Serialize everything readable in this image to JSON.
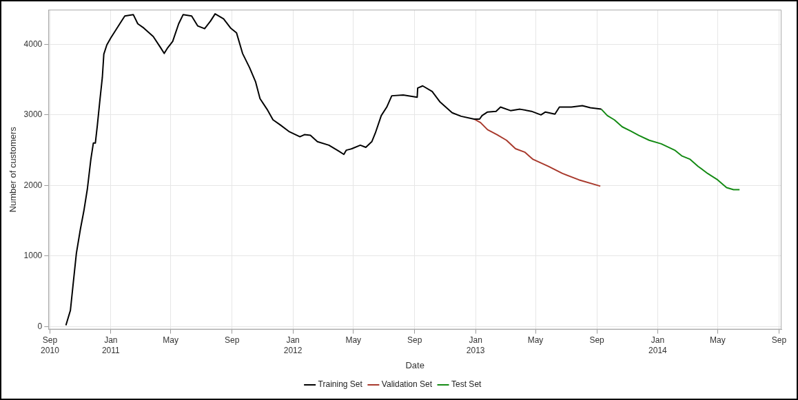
{
  "chart_data": {
    "type": "line",
    "xlabel": "Date",
    "ylabel": "Number of customers",
    "xlim": [
      "2010-08-29",
      "2014-09-06"
    ],
    "ylim": [
      -40,
      4490
    ],
    "xticks": [
      {
        "value": "2010-09-01",
        "label": "Sep 2010"
      },
      {
        "value": "2011-01-01",
        "label": "Jan 2011"
      },
      {
        "value": "2011-05-01",
        "label": "May"
      },
      {
        "value": "2011-09-01",
        "label": "Sep"
      },
      {
        "value": "2012-01-01",
        "label": "Jan 2012"
      },
      {
        "value": "2012-05-01",
        "label": "May"
      },
      {
        "value": "2012-09-01",
        "label": "Sep"
      },
      {
        "value": "2013-01-01",
        "label": "Jan 2013"
      },
      {
        "value": "2013-05-01",
        "label": "May"
      },
      {
        "value": "2013-09-01",
        "label": "Sep"
      },
      {
        "value": "2014-01-01",
        "label": "Jan 2014"
      },
      {
        "value": "2014-05-01",
        "label": "May"
      },
      {
        "value": "2014-09-01",
        "label": "Sep"
      }
    ],
    "yticks": [
      0,
      1000,
      2000,
      3000,
      4000
    ],
    "grid": true,
    "legend": "bottom",
    "marker": "none",
    "line_style": "solid",
    "series": [
      {
        "name": "Training Set",
        "color": "#000000",
        "x": [
          "2010-10-03",
          "2010-10-12",
          "2010-10-17",
          "2010-10-24",
          "2010-11-01",
          "2010-11-08",
          "2010-11-15",
          "2010-11-22",
          "2010-11-27",
          "2010-12-01",
          "2010-12-05",
          "2010-12-10",
          "2010-12-15",
          "2010-12-18",
          "2010-12-24",
          "2011-01-01",
          "2011-01-10",
          "2011-01-19",
          "2011-01-29",
          "2011-02-15",
          "2011-02-24",
          "2011-03-08",
          "2011-03-27",
          "2011-04-10",
          "2011-04-18",
          "2011-04-24",
          "2011-05-05",
          "2011-05-17",
          "2011-05-26",
          "2011-06-12",
          "2011-06-24",
          "2011-07-08",
          "2011-07-20",
          "2011-07-29",
          "2011-08-15",
          "2011-08-29",
          "2011-09-10",
          "2011-09-22",
          "2011-10-06",
          "2011-10-18",
          "2011-10-27",
          "2011-11-10",
          "2011-11-22",
          "2011-12-06",
          "2011-12-25",
          "2012-01-15",
          "2012-01-24",
          "2012-02-05",
          "2012-02-19",
          "2012-03-13",
          "2012-04-01",
          "2012-04-12",
          "2012-04-17",
          "2012-04-28",
          "2012-05-15",
          "2012-05-26",
          "2012-06-07",
          "2012-06-14",
          "2012-06-26",
          "2012-07-07",
          "2012-07-17",
          "2012-08-09",
          "2012-09-06",
          "2012-09-07",
          "2012-09-17",
          "2012-10-06",
          "2012-10-22",
          "2012-11-15",
          "2012-12-03",
          "2012-12-29",
          "2013-01-09",
          "2013-01-14",
          "2013-01-25",
          "2013-02-11",
          "2013-02-20",
          "2013-03-12",
          "2013-03-31",
          "2013-04-23",
          "2013-05-12",
          "2013-05-21",
          "2013-06-09",
          "2013-06-18",
          "2013-07-12",
          "2013-08-03",
          "2013-08-19",
          "2013-09-10"
        ],
        "values": [
          20,
          230,
          570,
          1040,
          1380,
          1640,
          1950,
          2370,
          2600,
          2600,
          2850,
          3200,
          3530,
          3860,
          3990,
          4090,
          4190,
          4290,
          4400,
          4420,
          4290,
          4230,
          4110,
          3960,
          3870,
          3940,
          4040,
          4290,
          4420,
          4400,
          4260,
          4220,
          4330,
          4430,
          4360,
          4230,
          4160,
          3870,
          3670,
          3470,
          3230,
          3080,
          2930,
          2860,
          2760,
          2690,
          2720,
          2710,
          2620,
          2570,
          2490,
          2440,
          2500,
          2520,
          2570,
          2540,
          2620,
          2740,
          2990,
          3110,
          3270,
          3280,
          3250,
          3380,
          3410,
          3330,
          3180,
          3030,
          2980,
          2940,
          2940,
          2990,
          3040,
          3050,
          3110,
          3060,
          3080,
          3050,
          3000,
          3040,
          3010,
          3110,
          3110,
          3130,
          3100,
          3080
        ]
      },
      {
        "name": "Validation Set",
        "color": "#a8392c",
        "x": [
          "2012-12-29",
          "2013-01-11",
          "2013-01-25",
          "2013-02-13",
          "2013-03-04",
          "2013-03-22",
          "2013-04-10",
          "2013-04-26",
          "2013-05-27",
          "2013-06-24",
          "2013-07-27",
          "2013-09-08"
        ],
        "values": [
          2940,
          2890,
          2790,
          2720,
          2640,
          2520,
          2470,
          2370,
          2270,
          2170,
          2080,
          1990
        ]
      },
      {
        "name": "Test Set",
        "color": "#138a13",
        "x": [
          "2013-09-10",
          "2013-09-22",
          "2013-10-06",
          "2013-10-22",
          "2013-11-08",
          "2013-11-24",
          "2013-12-15",
          "2014-01-08",
          "2014-02-04",
          "2014-02-18",
          "2014-03-07",
          "2014-03-23",
          "2014-04-11",
          "2014-05-01",
          "2014-05-19",
          "2014-06-02",
          "2014-06-14"
        ],
        "values": [
          3080,
          2990,
          2930,
          2830,
          2770,
          2710,
          2640,
          2590,
          2500,
          2420,
          2370,
          2270,
          2170,
          2080,
          1970,
          1940,
          1940
        ]
      }
    ]
  }
}
